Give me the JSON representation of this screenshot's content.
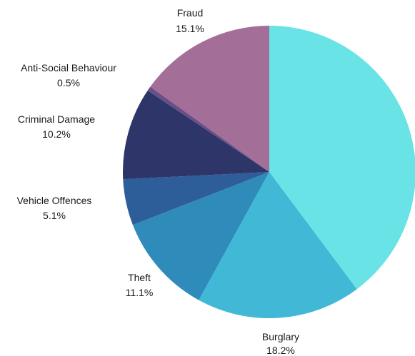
{
  "chart_data": {
    "type": "pie",
    "title": "",
    "start_angle_deg": 0,
    "direction": "clockwise",
    "slices": [
      {
        "label": "",
        "value": 39.8,
        "percent_label": "",
        "color": "#69E3E6"
      },
      {
        "label": "Burglary",
        "value": 18.2,
        "percent_label": "18.2%",
        "color": "#41B8D5"
      },
      {
        "label": "Theft",
        "value": 11.1,
        "percent_label": "11.1%",
        "color": "#2E8BBA"
      },
      {
        "label": "Vehicle Offences",
        "value": 5.1,
        "percent_label": "5.1%",
        "color": "#2E5E99"
      },
      {
        "label": "Criminal Damage",
        "value": 10.2,
        "percent_label": "10.2%",
        "color": "#2E3569"
      },
      {
        "label": "Anti-Social Behaviour",
        "value": 0.5,
        "percent_label": "0.5%",
        "color": "#6A4F86"
      },
      {
        "label": "Fraud",
        "value": 15.1,
        "percent_label": "15.1%",
        "color": "#A36F98"
      }
    ]
  }
}
